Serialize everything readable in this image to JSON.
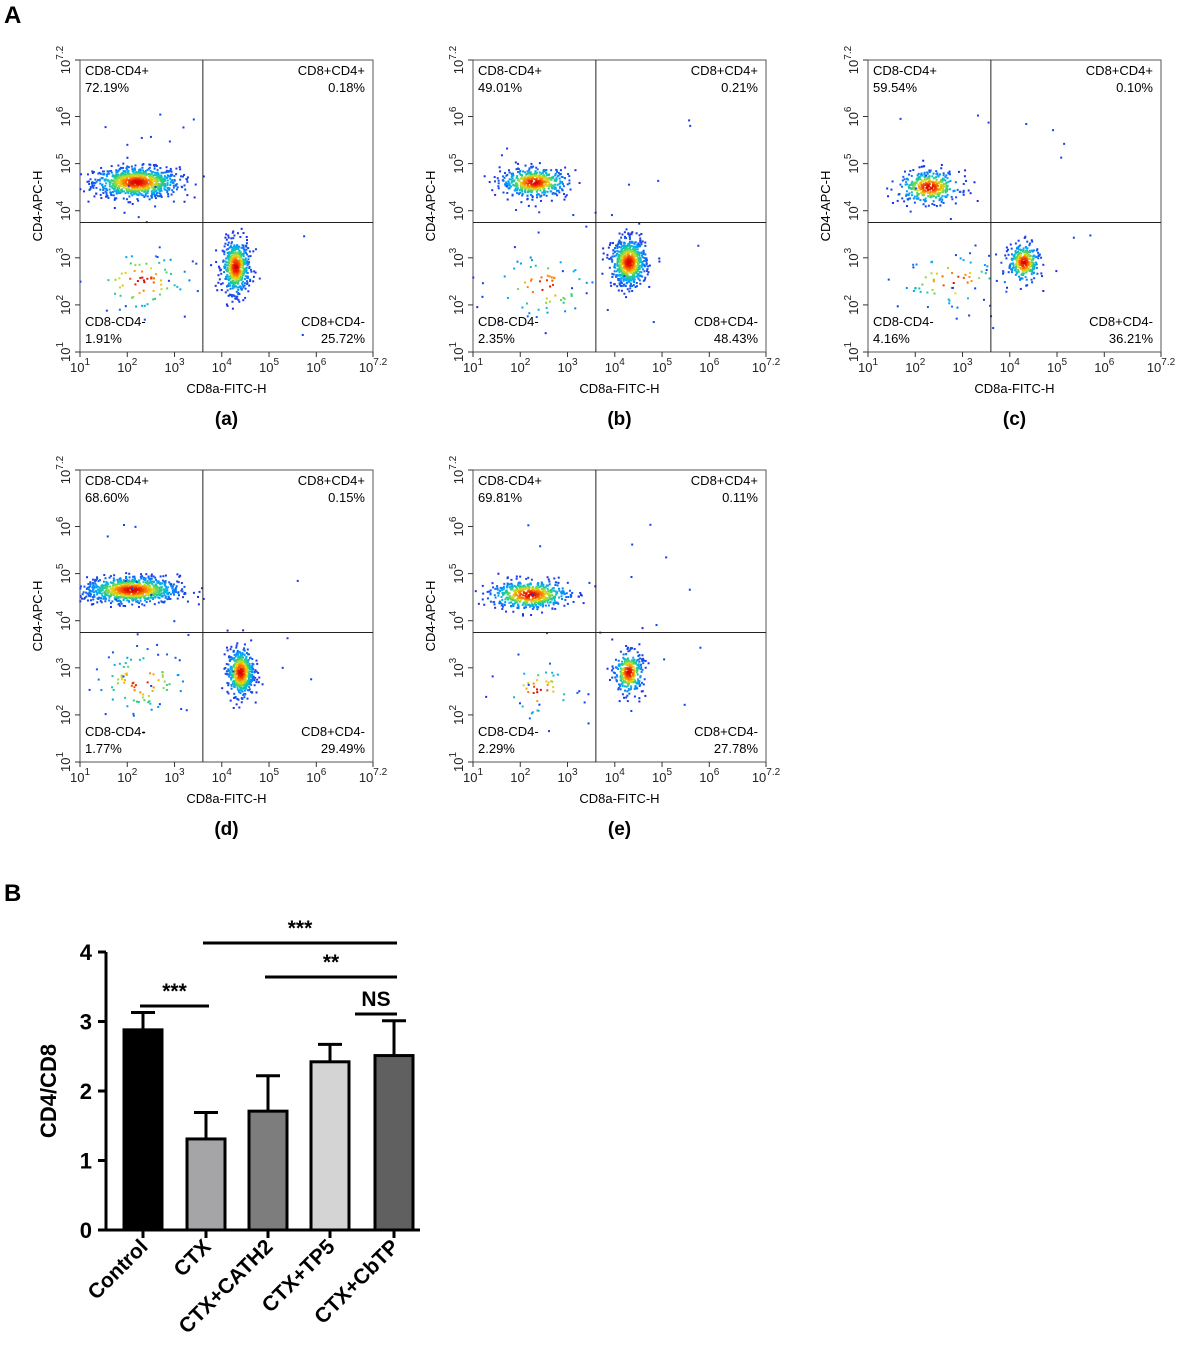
{
  "figure": {
    "label_a": "A",
    "label_b": "B"
  },
  "chart_data": [
    {
      "type": "scatter",
      "panel_label": "(a)",
      "xlabel": "CD8a-FITC-H",
      "ylabel": "CD4-APC-H",
      "log_scale": true,
      "xlim": [
        1,
        7.2
      ],
      "ylim": [
        1,
        7.2
      ],
      "x_ticks": [
        "1",
        "2",
        "3",
        "4",
        "5",
        "6",
        "7.2"
      ],
      "y_ticks": [
        "1",
        "2",
        "3",
        "4",
        "5",
        "6",
        "7.2"
      ],
      "gate": {
        "x": 3.6,
        "y": 3.75
      },
      "quadrants": [
        {
          "name": "CD8-CD4+",
          "percent": "72.19%"
        },
        {
          "name": "CD8+CD4+",
          "percent": "0.18%"
        },
        {
          "name": "CD8-CD4-",
          "percent": "1.91%"
        },
        {
          "name": "CD8+CD4-",
          "percent": "25.72%"
        }
      ],
      "clusters": [
        {
          "cx": 2.2,
          "cy": 4.6,
          "sx": 0.45,
          "sy": 0.16,
          "n": 900
        },
        {
          "cx": 4.3,
          "cy": 2.8,
          "sx": 0.14,
          "sy": 0.28,
          "n": 550
        },
        {
          "cx": 2.3,
          "cy": 2.5,
          "sx": 0.55,
          "sy": 0.35,
          "n": 70
        }
      ]
    },
    {
      "type": "scatter",
      "panel_label": "(b)",
      "xlabel": "CD8a-FITC-H",
      "ylabel": "CD4-APC-H",
      "log_scale": true,
      "xlim": [
        1,
        7.2
      ],
      "ylim": [
        1,
        7.2
      ],
      "x_ticks": [
        "1",
        "2",
        "3",
        "4",
        "5",
        "6",
        "7.2"
      ],
      "y_ticks": [
        "1",
        "2",
        "3",
        "4",
        "5",
        "6",
        "7.2"
      ],
      "gate": {
        "x": 3.6,
        "y": 3.75
      },
      "quadrants": [
        {
          "name": "CD8-CD4+",
          "percent": "49.01%"
        },
        {
          "name": "CD8+CD4+",
          "percent": "0.21%"
        },
        {
          "name": "CD8-CD4-",
          "percent": "2.35%"
        },
        {
          "name": "CD8+CD4-",
          "percent": "48.43%"
        }
      ],
      "clusters": [
        {
          "cx": 2.3,
          "cy": 4.6,
          "sx": 0.35,
          "sy": 0.15,
          "n": 500
        },
        {
          "cx": 4.3,
          "cy": 2.9,
          "sx": 0.18,
          "sy": 0.25,
          "n": 700
        },
        {
          "cx": 2.5,
          "cy": 2.4,
          "sx": 0.55,
          "sy": 0.35,
          "n": 60
        }
      ]
    },
    {
      "type": "scatter",
      "panel_label": "(c)",
      "xlabel": "CD8a-FITC-H",
      "ylabel": "CD4-APC-H",
      "log_scale": true,
      "xlim": [
        1,
        7.2
      ],
      "ylim": [
        1,
        7.2
      ],
      "x_ticks": [
        "1",
        "2",
        "3",
        "4",
        "5",
        "6",
        "7.2"
      ],
      "y_ticks": [
        "1",
        "2",
        "3",
        "4",
        "5",
        "6",
        "7.2"
      ],
      "gate": {
        "x": 3.6,
        "y": 3.75
      },
      "quadrants": [
        {
          "name": "CD8-CD4+",
          "percent": "59.54%"
        },
        {
          "name": "CD8+CD4+",
          "percent": "0.10%"
        },
        {
          "name": "CD8-CD4-",
          "percent": "4.16%"
        },
        {
          "name": "CD8+CD4-",
          "percent": "36.21%"
        }
      ],
      "clusters": [
        {
          "cx": 2.3,
          "cy": 4.5,
          "sx": 0.32,
          "sy": 0.17,
          "n": 380
        },
        {
          "cx": 4.3,
          "cy": 2.9,
          "sx": 0.16,
          "sy": 0.2,
          "n": 300
        },
        {
          "cx": 2.8,
          "cy": 2.5,
          "sx": 0.6,
          "sy": 0.3,
          "n": 60
        }
      ]
    },
    {
      "type": "scatter",
      "panel_label": "(d)",
      "xlabel": "CD8a-FITC-H",
      "ylabel": "CD4-APC-H",
      "log_scale": true,
      "xlim": [
        1,
        7.2
      ],
      "ylim": [
        1,
        7.2
      ],
      "x_ticks": [
        "1",
        "2",
        "3",
        "4",
        "5",
        "6",
        "7.2"
      ],
      "y_ticks": [
        "1",
        "2",
        "3",
        "4",
        "5",
        "6",
        "7.2"
      ],
      "gate": {
        "x": 3.6,
        "y": 3.75
      },
      "quadrants": [
        {
          "name": "CD8-CD4+",
          "percent": "68.60%"
        },
        {
          "name": "CD8+CD4+",
          "percent": "0.15%"
        },
        {
          "name": "CD8-CD4-",
          "percent": "1.77%"
        },
        {
          "name": "CD8+CD4-",
          "percent": "29.49%"
        }
      ],
      "clusters": [
        {
          "cx": 2.1,
          "cy": 4.65,
          "sx": 0.5,
          "sy": 0.14,
          "n": 900
        },
        {
          "cx": 4.4,
          "cy": 2.9,
          "sx": 0.14,
          "sy": 0.25,
          "n": 550
        },
        {
          "cx": 2.3,
          "cy": 2.7,
          "sx": 0.5,
          "sy": 0.35,
          "n": 80
        }
      ]
    },
    {
      "type": "scatter",
      "panel_label": "(e)",
      "xlabel": "CD8a-FITC-H",
      "ylabel": "CD4-APC-H",
      "log_scale": true,
      "xlim": [
        1,
        7.2
      ],
      "ylim": [
        1,
        7.2
      ],
      "x_ticks": [
        "1",
        "2",
        "3",
        "4",
        "5",
        "6",
        "7.2"
      ],
      "y_ticks": [
        "1",
        "2",
        "3",
        "4",
        "5",
        "6",
        "7.2"
      ],
      "gate": {
        "x": 3.6,
        "y": 3.75
      },
      "quadrants": [
        {
          "name": "CD8-CD4+",
          "percent": "69.81%"
        },
        {
          "name": "CD8+CD4+",
          "percent": "0.11%"
        },
        {
          "name": "CD8-CD4-",
          "percent": "2.29%"
        },
        {
          "name": "CD8+CD4-",
          "percent": "27.78%"
        }
      ],
      "clusters": [
        {
          "cx": 2.2,
          "cy": 4.55,
          "sx": 0.42,
          "sy": 0.15,
          "n": 550
        },
        {
          "cx": 4.3,
          "cy": 2.9,
          "sx": 0.15,
          "sy": 0.22,
          "n": 320
        },
        {
          "cx": 2.4,
          "cy": 2.5,
          "sx": 0.4,
          "sy": 0.3,
          "n": 40
        }
      ]
    },
    {
      "type": "bar",
      "categories": [
        "Control",
        "CTX",
        "CTX+CATH2",
        "CTX+TP5",
        "CTX+CbTP"
      ],
      "values": [
        2.88,
        1.31,
        1.71,
        2.42,
        2.51
      ],
      "errors": [
        0.25,
        0.38,
        0.51,
        0.25,
        0.5
      ],
      "colors": [
        "#000000",
        "#a5a5a8",
        "#7d7d7d",
        "#d4d4d4",
        "#606060"
      ],
      "ylabel": "CD4/CD8",
      "ylim": [
        0,
        4
      ],
      "y_ticks": [
        "0",
        "1",
        "2",
        "3",
        "4"
      ],
      "significance": [
        {
          "from": "Control",
          "to": "CTX",
          "label": "***"
        },
        {
          "from": "CTX",
          "to": "CTX+CbTP",
          "label": "***"
        },
        {
          "from": "CTX+CATH2",
          "to": "CTX+CbTP",
          "label": "**"
        },
        {
          "from": "CTX+TP5",
          "to": "CTX+CbTP",
          "label": "NS"
        }
      ]
    }
  ]
}
